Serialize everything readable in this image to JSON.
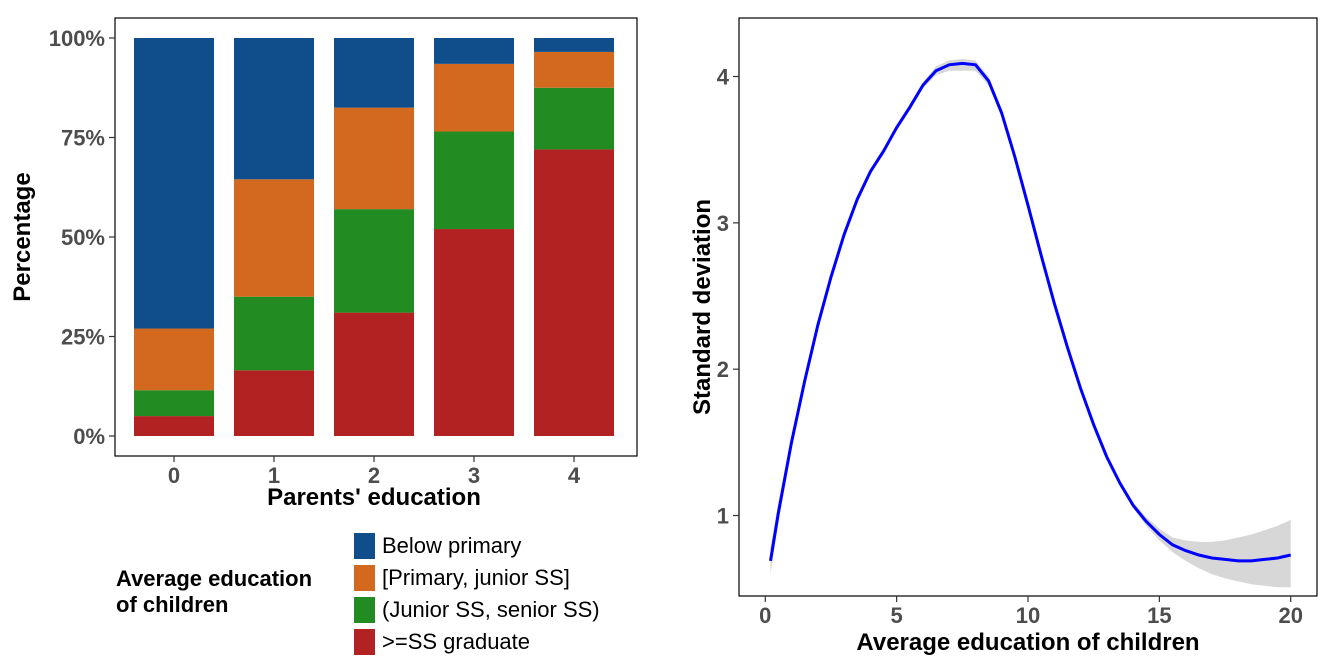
{
  "chart_data": [
    {
      "type": "bar",
      "stacked": true,
      "percent": true,
      "xlabel": "Parents' education",
      "ylabel": "Percentage",
      "categories": [
        "0",
        "1",
        "2",
        "3",
        "4"
      ],
      "y_ticks": [
        "0%",
        "25%",
        "50%",
        "75%",
        "100%"
      ],
      "ylim": [
        0,
        100
      ],
      "grid": false,
      "legend": {
        "title_lines": [
          "Average education",
          "of children"
        ],
        "position": "bottom-left"
      },
      "series": [
        {
          "name": ">=SS graduate",
          "color": "#b22222",
          "values": [
            5,
            16.5,
            31,
            52,
            72
          ]
        },
        {
          "name": "(Junior SS, senior SS)",
          "color": "#228b22",
          "values": [
            6.5,
            18.5,
            26,
            24.5,
            15.5
          ]
        },
        {
          "name": "[Primary, junior SS]",
          "color": "#d2691e",
          "values": [
            15.5,
            29.5,
            25.5,
            17,
            9
          ]
        },
        {
          "name": "Below primary",
          "color": "#104e8b",
          "values": [
            73,
            35.5,
            17.5,
            6.5,
            3.5
          ]
        }
      ],
      "legend_order": [
        "Below primary",
        "[Primary, junior SS]",
        "(Junior SS, senior SS)",
        ">=SS graduate"
      ]
    },
    {
      "type": "line",
      "xlabel": "Average education of children",
      "ylabel": "Standard deviation",
      "xlim": [
        -1,
        21
      ],
      "ylim": [
        0.45,
        4.4
      ],
      "x_ticks": [
        0,
        5,
        10,
        15,
        20
      ],
      "y_ticks": [
        1,
        2,
        3,
        4
      ],
      "grid": false,
      "line_color": "#0000ff",
      "band_color": "#d3d3d3",
      "series": [
        {
          "x": [
            0.2,
            0.5,
            1,
            1.5,
            2,
            2.5,
            3,
            3.5,
            4,
            4.5,
            5,
            5.5,
            6,
            6.5,
            7,
            7.5,
            8,
            8.5,
            9,
            9.5,
            10,
            10.5,
            11,
            11.5,
            12,
            12.5,
            13,
            13.5,
            14,
            14.5,
            15,
            15.5,
            16,
            16.5,
            17,
            17.5,
            18,
            18.5,
            19,
            19.5,
            20
          ],
          "y": [
            0.69,
            1.02,
            1.5,
            1.92,
            2.3,
            2.63,
            2.92,
            3.16,
            3.35,
            3.49,
            3.65,
            3.79,
            3.94,
            4.04,
            4.08,
            4.09,
            4.08,
            3.97,
            3.75,
            3.45,
            3.12,
            2.78,
            2.45,
            2.15,
            1.87,
            1.62,
            1.4,
            1.22,
            1.07,
            0.96,
            0.87,
            0.8,
            0.76,
            0.73,
            0.71,
            0.7,
            0.69,
            0.69,
            0.7,
            0.71,
            0.73
          ],
          "lower": [
            0.6,
            0.95,
            1.45,
            1.88,
            2.27,
            2.6,
            2.89,
            3.13,
            3.33,
            3.47,
            3.63,
            3.77,
            3.92,
            4.01,
            4.04,
            4.04,
            4.04,
            3.94,
            3.72,
            3.42,
            3.1,
            2.76,
            2.43,
            2.13,
            1.85,
            1.6,
            1.38,
            1.2,
            1.05,
            0.93,
            0.83,
            0.75,
            0.69,
            0.64,
            0.6,
            0.57,
            0.55,
            0.53,
            0.52,
            0.51,
            0.51
          ],
          "upper": [
            0.78,
            1.09,
            1.55,
            1.96,
            2.33,
            2.66,
            2.95,
            3.19,
            3.37,
            3.51,
            3.67,
            3.81,
            3.96,
            4.07,
            4.11,
            4.12,
            4.11,
            4.0,
            3.78,
            3.48,
            3.14,
            2.8,
            2.47,
            2.17,
            1.89,
            1.64,
            1.42,
            1.24,
            1.09,
            0.99,
            0.91,
            0.85,
            0.83,
            0.82,
            0.82,
            0.83,
            0.85,
            0.87,
            0.9,
            0.93,
            0.97
          ]
        }
      ]
    }
  ]
}
